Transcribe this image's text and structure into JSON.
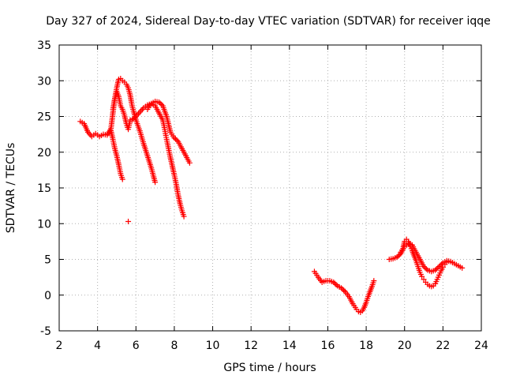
{
  "chart_data": {
    "type": "scatter",
    "title": "Day 327 of 2024, Sidereal Day-to-day VTEC variation (SDTVAR) for receiver iqqe",
    "xlabel": "GPS time / hours",
    "ylabel": "SDTVAR / TECUs",
    "xlim": [
      2,
      24
    ],
    "ylim": [
      -5,
      35
    ],
    "xticks": [
      "2",
      "4",
      "6",
      "8",
      "10",
      "12",
      "14",
      "16",
      "18",
      "20",
      "22",
      "24"
    ],
    "yticks": [
      "-5",
      "0",
      "5",
      "10",
      "15",
      "20",
      "25",
      "30",
      "35"
    ],
    "grid": true,
    "marker": "+",
    "color": "#ff0000",
    "series": [
      {
        "name": "arc-1",
        "x": [
          3.1,
          3.3,
          3.5,
          3.7,
          3.9,
          4.1,
          4.3,
          4.5,
          4.7,
          4.8,
          4.9,
          5.0,
          5.1,
          5.2,
          5.3,
          5.4,
          5.5,
          5.6,
          5.7
        ],
        "y": [
          24.3,
          24.0,
          22.8,
          22.2,
          22.6,
          22.2,
          22.5,
          22.4,
          23.3,
          25.5,
          27.5,
          28.5,
          27.8,
          26.5,
          26.0,
          25.2,
          24.0,
          23.2,
          24.5
        ]
      },
      {
        "name": "arc-2",
        "x": [
          4.7,
          4.8,
          4.9,
          5.0,
          5.1,
          5.2,
          5.3
        ],
        "y": [
          23.0,
          21.8,
          20.5,
          19.5,
          18.3,
          17.0,
          16.2
        ]
      },
      {
        "name": "arc-3",
        "x": [
          4.8,
          4.9,
          5.0,
          5.1,
          5.2,
          5.3,
          5.4,
          5.5,
          5.6,
          5.7,
          5.8,
          5.9,
          6.0,
          6.2,
          6.4,
          6.6,
          6.8,
          7.0
        ],
        "y": [
          26.0,
          27.5,
          29.0,
          30.2,
          30.3,
          30.0,
          29.8,
          29.5,
          29.0,
          28.0,
          26.5,
          25.5,
          24.5,
          23.0,
          21.2,
          19.5,
          17.8,
          15.8
        ]
      },
      {
        "name": "arc-4",
        "x": [
          5.8,
          6.0,
          6.2,
          6.4,
          6.6,
          6.8,
          7.0,
          7.2,
          7.4,
          7.5,
          7.6,
          7.7,
          7.8,
          7.9,
          8.0,
          8.1,
          8.2,
          8.3,
          8.4,
          8.5
        ],
        "y": [
          24.5,
          25.0,
          25.6,
          26.2,
          26.6,
          26.8,
          26.5,
          25.5,
          24.5,
          23.2,
          21.8,
          20.5,
          19.2,
          18.0,
          16.8,
          15.5,
          14.0,
          12.8,
          11.8,
          11.0
        ]
      },
      {
        "name": "arc-5",
        "x": [
          6.6,
          6.8,
          7.0,
          7.2,
          7.4,
          7.6,
          7.8,
          8.0,
          8.2,
          8.4,
          8.6,
          8.8
        ],
        "y": [
          26.0,
          26.8,
          27.1,
          27.0,
          26.5,
          25.0,
          22.8,
          22.0,
          21.5,
          20.5,
          19.5,
          18.5
        ]
      },
      {
        "name": "outlier",
        "x": [
          5.6
        ],
        "y": [
          10.3
        ]
      },
      {
        "name": "arc-6",
        "x": [
          15.3,
          15.5,
          15.7,
          15.9,
          16.1,
          16.3,
          16.5,
          16.7,
          16.9,
          17.1,
          17.3,
          17.5,
          17.6,
          17.7,
          17.8,
          17.9,
          18.0,
          18.1,
          18.2,
          18.3,
          18.4
        ],
        "y": [
          3.3,
          2.5,
          1.8,
          2.0,
          2.0,
          1.8,
          1.3,
          1.0,
          0.5,
          -0.2,
          -1.2,
          -2.0,
          -2.3,
          -2.4,
          -2.2,
          -1.7,
          -1.0,
          -0.2,
          0.5,
          1.2,
          2.0
        ]
      },
      {
        "name": "arc-7",
        "x": [
          19.2,
          19.4,
          19.6,
          19.8,
          19.9,
          20.0,
          20.1,
          20.2,
          20.3,
          20.4,
          20.5,
          20.6,
          20.7,
          20.8,
          20.9,
          21.0,
          21.1,
          21.2,
          21.3,
          21.4,
          21.5,
          21.6
        ],
        "y": [
          5.0,
          5.1,
          5.3,
          5.8,
          6.3,
          7.5,
          7.8,
          7.5,
          6.8,
          6.2,
          5.5,
          4.8,
          4.0,
          3.2,
          2.6,
          2.2,
          1.8,
          1.5,
          1.3,
          1.2,
          1.3,
          1.6
        ]
      },
      {
        "name": "arc-8",
        "x": [
          19.8,
          20.0,
          20.2,
          20.4,
          20.6,
          20.8,
          21.0,
          21.2,
          21.4,
          21.6,
          21.8,
          22.0,
          22.2,
          22.4,
          22.6,
          22.8,
          23.0
        ],
        "y": [
          6.0,
          6.8,
          7.2,
          7.0,
          6.0,
          5.0,
          4.0,
          3.5,
          3.3,
          3.5,
          4.0,
          4.5,
          4.8,
          4.7,
          4.4,
          4.1,
          3.8
        ]
      },
      {
        "name": "arc-9",
        "x": [
          21.6,
          21.7,
          21.8,
          21.9,
          22.0,
          22.1,
          22.2
        ],
        "y": [
          1.6,
          2.2,
          2.8,
          3.4,
          3.9,
          4.3,
          4.6
        ]
      }
    ]
  }
}
